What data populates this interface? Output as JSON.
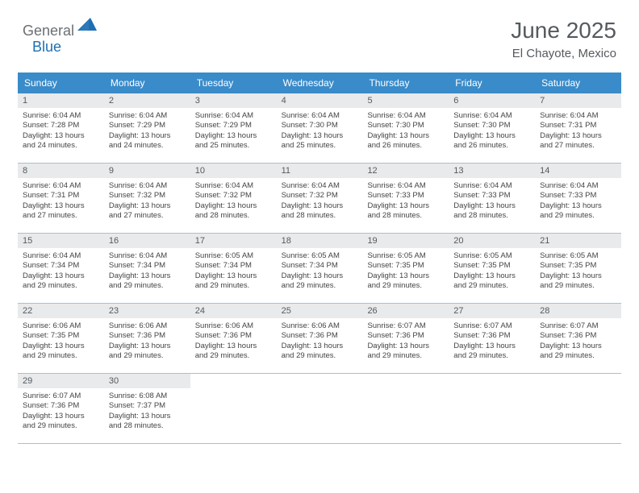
{
  "logo": {
    "part1": "General",
    "part2": "Blue"
  },
  "title": "June 2025",
  "location": "El Chayote, Mexico",
  "colors": {
    "header_bg": "#3a8bc9",
    "header_text": "#ffffff",
    "daynum_bg": "#e9eaeb",
    "row_border": "#a9bfd2",
    "logo_blue": "#1f6fb2",
    "logo_gray": "#6b6f73"
  },
  "day_headers": [
    "Sunday",
    "Monday",
    "Tuesday",
    "Wednesday",
    "Thursday",
    "Friday",
    "Saturday"
  ],
  "weeks": [
    [
      {
        "n": 1,
        "sr": "6:04 AM",
        "ss": "7:28 PM",
        "dl": "13 hours and 24 minutes."
      },
      {
        "n": 2,
        "sr": "6:04 AM",
        "ss": "7:29 PM",
        "dl": "13 hours and 24 minutes."
      },
      {
        "n": 3,
        "sr": "6:04 AM",
        "ss": "7:29 PM",
        "dl": "13 hours and 25 minutes."
      },
      {
        "n": 4,
        "sr": "6:04 AM",
        "ss": "7:30 PM",
        "dl": "13 hours and 25 minutes."
      },
      {
        "n": 5,
        "sr": "6:04 AM",
        "ss": "7:30 PM",
        "dl": "13 hours and 26 minutes."
      },
      {
        "n": 6,
        "sr": "6:04 AM",
        "ss": "7:30 PM",
        "dl": "13 hours and 26 minutes."
      },
      {
        "n": 7,
        "sr": "6:04 AM",
        "ss": "7:31 PM",
        "dl": "13 hours and 27 minutes."
      }
    ],
    [
      {
        "n": 8,
        "sr": "6:04 AM",
        "ss": "7:31 PM",
        "dl": "13 hours and 27 minutes."
      },
      {
        "n": 9,
        "sr": "6:04 AM",
        "ss": "7:32 PM",
        "dl": "13 hours and 27 minutes."
      },
      {
        "n": 10,
        "sr": "6:04 AM",
        "ss": "7:32 PM",
        "dl": "13 hours and 28 minutes."
      },
      {
        "n": 11,
        "sr": "6:04 AM",
        "ss": "7:32 PM",
        "dl": "13 hours and 28 minutes."
      },
      {
        "n": 12,
        "sr": "6:04 AM",
        "ss": "7:33 PM",
        "dl": "13 hours and 28 minutes."
      },
      {
        "n": 13,
        "sr": "6:04 AM",
        "ss": "7:33 PM",
        "dl": "13 hours and 28 minutes."
      },
      {
        "n": 14,
        "sr": "6:04 AM",
        "ss": "7:33 PM",
        "dl": "13 hours and 29 minutes."
      }
    ],
    [
      {
        "n": 15,
        "sr": "6:04 AM",
        "ss": "7:34 PM",
        "dl": "13 hours and 29 minutes."
      },
      {
        "n": 16,
        "sr": "6:04 AM",
        "ss": "7:34 PM",
        "dl": "13 hours and 29 minutes."
      },
      {
        "n": 17,
        "sr": "6:05 AM",
        "ss": "7:34 PM",
        "dl": "13 hours and 29 minutes."
      },
      {
        "n": 18,
        "sr": "6:05 AM",
        "ss": "7:34 PM",
        "dl": "13 hours and 29 minutes."
      },
      {
        "n": 19,
        "sr": "6:05 AM",
        "ss": "7:35 PM",
        "dl": "13 hours and 29 minutes."
      },
      {
        "n": 20,
        "sr": "6:05 AM",
        "ss": "7:35 PM",
        "dl": "13 hours and 29 minutes."
      },
      {
        "n": 21,
        "sr": "6:05 AM",
        "ss": "7:35 PM",
        "dl": "13 hours and 29 minutes."
      }
    ],
    [
      {
        "n": 22,
        "sr": "6:06 AM",
        "ss": "7:35 PM",
        "dl": "13 hours and 29 minutes."
      },
      {
        "n": 23,
        "sr": "6:06 AM",
        "ss": "7:36 PM",
        "dl": "13 hours and 29 minutes."
      },
      {
        "n": 24,
        "sr": "6:06 AM",
        "ss": "7:36 PM",
        "dl": "13 hours and 29 minutes."
      },
      {
        "n": 25,
        "sr": "6:06 AM",
        "ss": "7:36 PM",
        "dl": "13 hours and 29 minutes."
      },
      {
        "n": 26,
        "sr": "6:07 AM",
        "ss": "7:36 PM",
        "dl": "13 hours and 29 minutes."
      },
      {
        "n": 27,
        "sr": "6:07 AM",
        "ss": "7:36 PM",
        "dl": "13 hours and 29 minutes."
      },
      {
        "n": 28,
        "sr": "6:07 AM",
        "ss": "7:36 PM",
        "dl": "13 hours and 29 minutes."
      }
    ],
    [
      {
        "n": 29,
        "sr": "6:07 AM",
        "ss": "7:36 PM",
        "dl": "13 hours and 29 minutes."
      },
      {
        "n": 30,
        "sr": "6:08 AM",
        "ss": "7:37 PM",
        "dl": "13 hours and 28 minutes."
      },
      null,
      null,
      null,
      null,
      null
    ]
  ],
  "labels": {
    "sunrise": "Sunrise:",
    "sunset": "Sunset:",
    "daylight": "Daylight:"
  }
}
